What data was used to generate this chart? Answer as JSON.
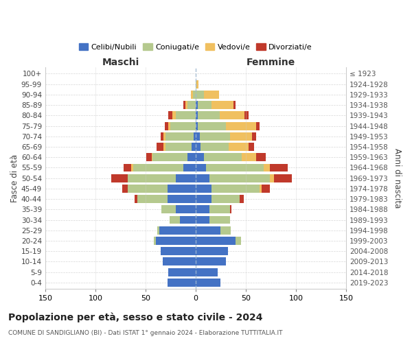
{
  "age_groups": [
    "0-4",
    "5-9",
    "10-14",
    "15-19",
    "20-24",
    "25-29",
    "30-34",
    "35-39",
    "40-44",
    "45-49",
    "50-54",
    "55-59",
    "60-64",
    "65-69",
    "70-74",
    "75-79",
    "80-84",
    "85-89",
    "90-94",
    "95-99",
    "100+"
  ],
  "birth_years": [
    "2019-2023",
    "2014-2018",
    "2009-2013",
    "2004-2008",
    "1999-2003",
    "1994-1998",
    "1989-1993",
    "1984-1988",
    "1979-1983",
    "1974-1978",
    "1969-1973",
    "1964-1968",
    "1959-1963",
    "1954-1958",
    "1949-1953",
    "1944-1948",
    "1939-1943",
    "1934-1938",
    "1929-1933",
    "1924-1928",
    "≤ 1923"
  ],
  "males": {
    "celibi": [
      28,
      27,
      33,
      35,
      40,
      36,
      16,
      20,
      28,
      28,
      20,
      12,
      8,
      4,
      2,
      0,
      0,
      0,
      0,
      0,
      0
    ],
    "coniugati": [
      0,
      0,
      0,
      0,
      2,
      2,
      10,
      14,
      30,
      40,
      48,
      50,
      35,
      26,
      28,
      25,
      20,
      8,
      3,
      0,
      0
    ],
    "vedovi": [
      0,
      0,
      0,
      0,
      0,
      0,
      0,
      0,
      0,
      0,
      0,
      2,
      1,
      2,
      2,
      2,
      3,
      2,
      2,
      0,
      0
    ],
    "divorziati": [
      0,
      0,
      0,
      0,
      0,
      0,
      0,
      0,
      3,
      5,
      16,
      8,
      5,
      7,
      3,
      4,
      4,
      2,
      0,
      0,
      0
    ]
  },
  "females": {
    "nubili": [
      25,
      22,
      30,
      32,
      40,
      25,
      14,
      14,
      16,
      16,
      14,
      10,
      8,
      5,
      4,
      2,
      2,
      2,
      0,
      0,
      0
    ],
    "coniugate": [
      0,
      0,
      0,
      0,
      5,
      10,
      20,
      20,
      28,
      48,
      60,
      58,
      38,
      28,
      30,
      28,
      22,
      14,
      8,
      1,
      0
    ],
    "vedove": [
      0,
      0,
      0,
      0,
      0,
      0,
      0,
      0,
      0,
      2,
      4,
      6,
      14,
      20,
      22,
      30,
      25,
      22,
      15,
      2,
      0
    ],
    "divorziate": [
      0,
      0,
      0,
      0,
      0,
      0,
      0,
      2,
      4,
      8,
      18,
      18,
      10,
      5,
      4,
      4,
      4,
      2,
      0,
      0,
      0
    ]
  },
  "colors": {
    "celibi": "#4472c4",
    "coniugati": "#b5c98e",
    "vedovi": "#f0c060",
    "divorziati": "#c0392b"
  },
  "title": "Popolazione per età, sesso e stato civile - 2024",
  "subtitle": "COMUNE DI SANDIGLIANO (BI) - Dati ISTAT 1° gennaio 2024 - Elaborazione TUTTITALIA.IT",
  "ylabel_left": "Fasce di età",
  "ylabel_right": "Anni di nascita",
  "xlabel_left": "Maschi",
  "xlabel_right": "Femmine",
  "xlim": 150,
  "background_color": "#ffffff",
  "grid_color": "#cccccc"
}
